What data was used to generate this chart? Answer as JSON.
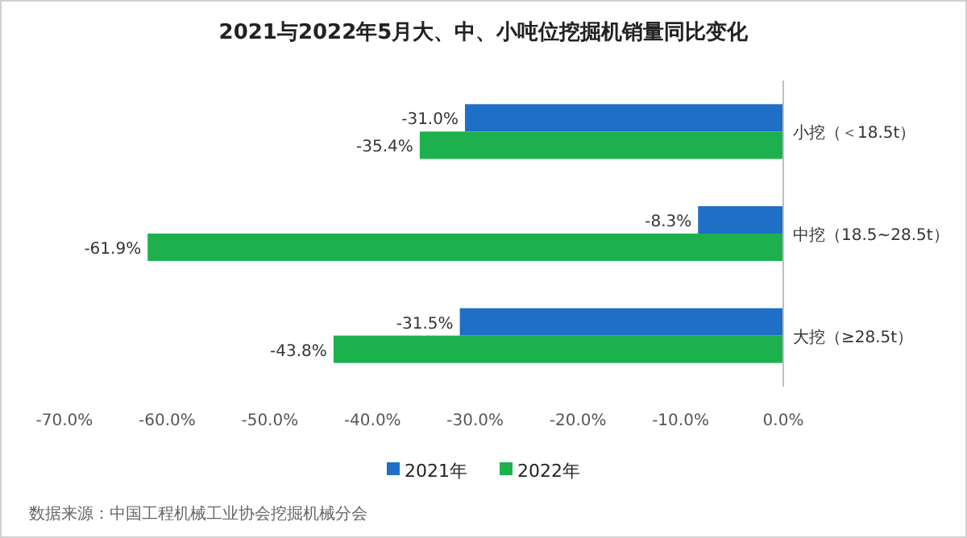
{
  "chart_data": {
    "type": "bar",
    "orientation": "horizontal",
    "title": "2021与2022年5月大、中、小吨位挖掘机销量同比变化",
    "categories": [
      "小挖（＜18.5t）",
      "中挖（18.5~28.5t）",
      "大挖（≥28.5t）"
    ],
    "series": [
      {
        "name": "2021年",
        "color": "#1f6fc6",
        "values": [
          -31.0,
          -8.3,
          -31.5
        ],
        "value_labels": [
          "-31.0%",
          "-8.3%",
          "-31.5%"
        ]
      },
      {
        "name": "2022年",
        "color": "#1db14e",
        "values": [
          -35.4,
          -61.9,
          -43.8
        ],
        "value_labels": [
          "-35.4%",
          "-61.9%",
          "-43.8%"
        ]
      }
    ],
    "xlim": [
      -70,
      0
    ],
    "xticks": [
      {
        "value": -70,
        "label": "-70.0%"
      },
      {
        "value": -60,
        "label": "-60.0%"
      },
      {
        "value": -50,
        "label": "-50.0%"
      },
      {
        "value": -40,
        "label": "-40.0%"
      },
      {
        "value": -30,
        "label": "-30.0%"
      },
      {
        "value": -20,
        "label": "-20.0%"
      },
      {
        "value": -10,
        "label": "-10.0%"
      },
      {
        "value": 0,
        "label": "0.0%"
      }
    ],
    "legend": "bottom",
    "annotations": [
      "数据来源：中国工程机械工业协会挖掘机械分会"
    ]
  }
}
